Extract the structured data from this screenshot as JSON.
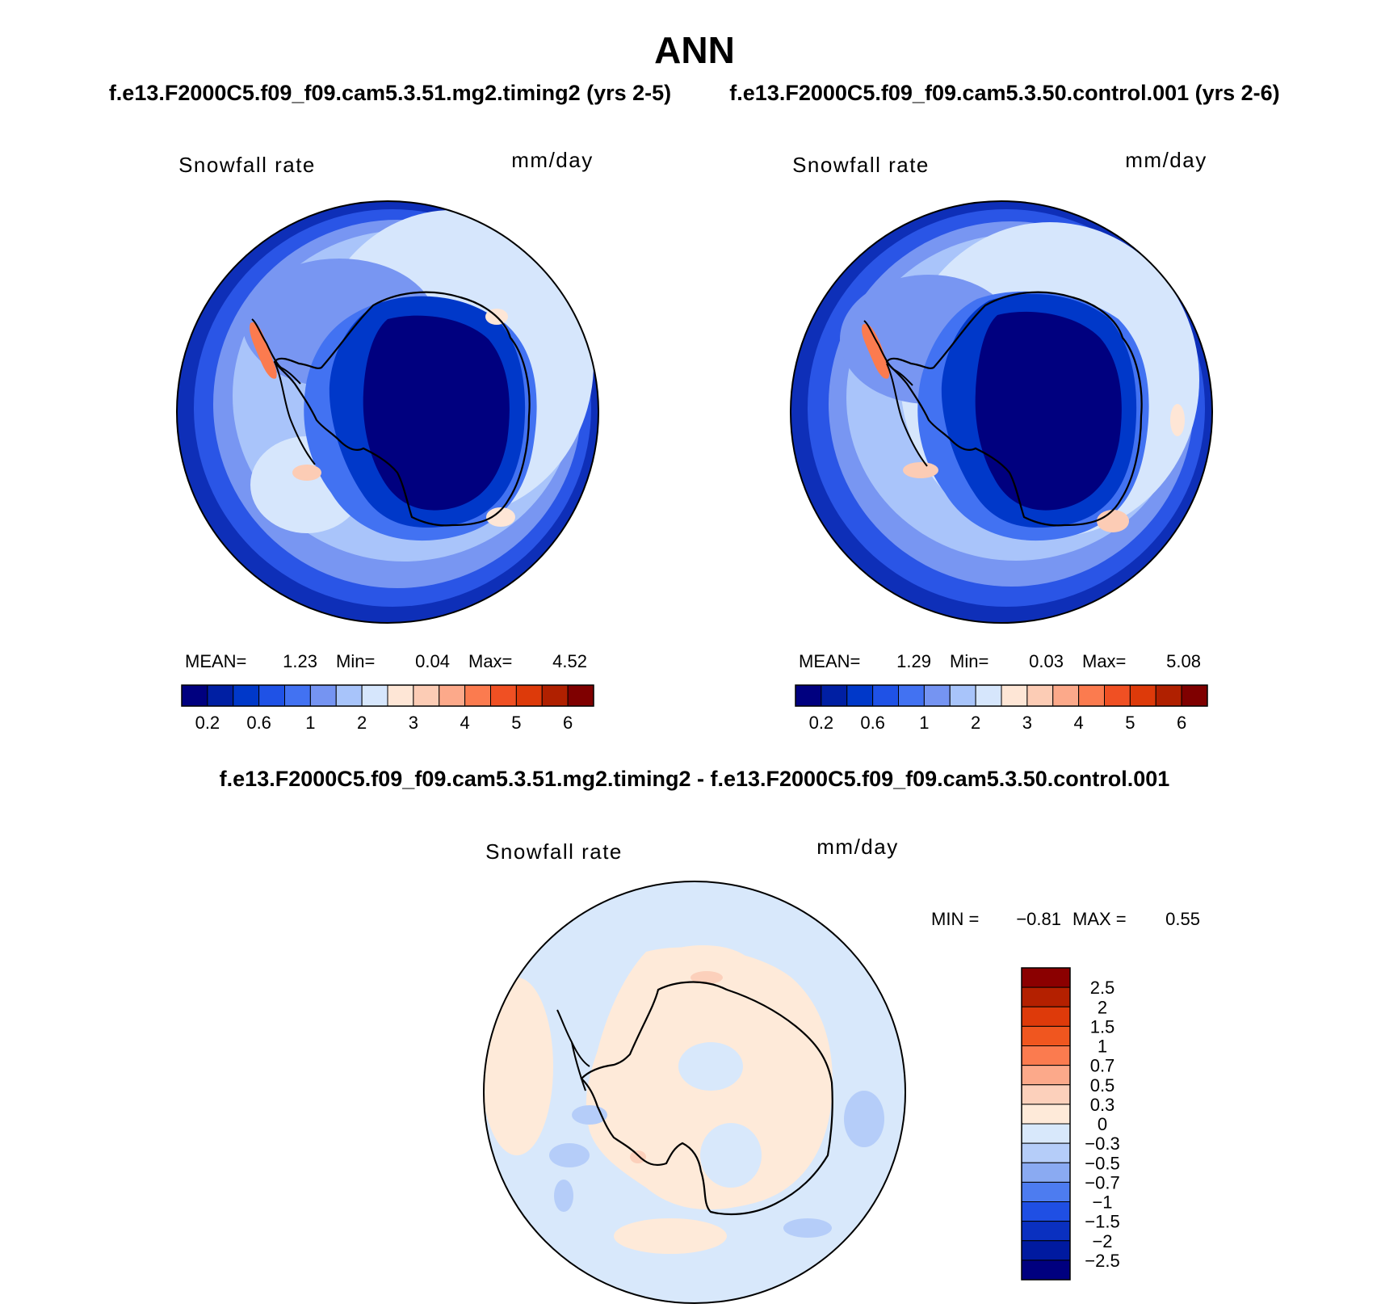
{
  "figure": {
    "title": "ANN",
    "subtitle_left": "f.e13.F2000C5.f09_f09.cam5.3.51.mg2.timing2 (yrs 2-5)",
    "subtitle_right": "f.e13.F2000C5.f09_f09.cam5.3.50.control.001 (yrs 2-6)",
    "diff_title": "f.e13.F2000C5.f09_f09.cam5.3.51.mg2.timing2 - f.e13.F2000C5.f09_f09.cam5.3.50.control.001"
  },
  "panels": [
    {
      "variable": "Snowfall rate",
      "units": "mm/day",
      "stats": {
        "mean_label": "MEAN=",
        "mean": "1.23",
        "min_label": "Min=",
        "min": "0.04",
        "max_label": "Max=",
        "max": "4.52"
      }
    },
    {
      "variable": "Snowfall rate",
      "units": "mm/day",
      "stats": {
        "mean_label": "MEAN=",
        "mean": "1.29",
        "min_label": "Min=",
        "min": "0.03",
        "max_label": "Max=",
        "max": "5.08"
      }
    },
    {
      "variable": "Snowfall rate",
      "units": "mm/day",
      "stats": {
        "min_label": "MIN =",
        "min": "−0.81",
        "max_label": "MAX =",
        "max": "0.55"
      }
    }
  ],
  "chart_data": [
    {
      "type": "heatmap",
      "projection": "south polar stereographic",
      "field": "Snowfall rate",
      "units": "mm/day",
      "mean": 1.23,
      "min": 0.04,
      "max": 4.52,
      "colorbar_ticks": [
        "0.2",
        "0.6",
        "1",
        "2",
        "3",
        "4",
        "5",
        "6"
      ],
      "colors": [
        "#00007f",
        "#001fa3",
        "#0038c9",
        "#1f52e6",
        "#4272f2",
        "#7594f2",
        "#a8c4fa",
        "#d6e6fc",
        "#fee6d6",
        "#fcccb5",
        "#fca98a",
        "#fb7b4f",
        "#f05023",
        "#dd3a0a",
        "#b02000",
        "#7f0000"
      ]
    },
    {
      "type": "heatmap",
      "projection": "south polar stereographic",
      "field": "Snowfall rate",
      "units": "mm/day",
      "mean": 1.29,
      "min": 0.03,
      "max": 5.08,
      "colorbar_ticks": [
        "0.2",
        "0.6",
        "1",
        "2",
        "3",
        "4",
        "5",
        "6"
      ],
      "colors": [
        "#00007f",
        "#001fa3",
        "#0038c9",
        "#1f52e6",
        "#4272f2",
        "#7594f2",
        "#a8c4fa",
        "#d6e6fc",
        "#fee6d6",
        "#fcccb5",
        "#fca98a",
        "#fb7b4f",
        "#f05023",
        "#dd3a0a",
        "#b02000",
        "#7f0000"
      ]
    },
    {
      "type": "heatmap",
      "projection": "south polar stereographic",
      "field": "Snowfall rate difference",
      "units": "mm/day",
      "min": -0.81,
      "max": 0.55,
      "colorbar_ticks": [
        "2.5",
        "2",
        "1.5",
        "1",
        "0.7",
        "0.5",
        "0.3",
        "0",
        "−0.3",
        "−0.5",
        "−0.7",
        "−1",
        "−1.5",
        "−2",
        "−2.5"
      ],
      "colors_top_to_bottom": [
        "#8b0000",
        "#b42000",
        "#de3a0a",
        "#f0561f",
        "#fb7b4f",
        "#fca98a",
        "#fcd0bb",
        "#feead9",
        "#d8e8fb",
        "#b5cdf9",
        "#8aaaf2",
        "#4d7cf0",
        "#1f4fe4",
        "#0a30c0",
        "#001aa0",
        "#00007f"
      ]
    }
  ]
}
